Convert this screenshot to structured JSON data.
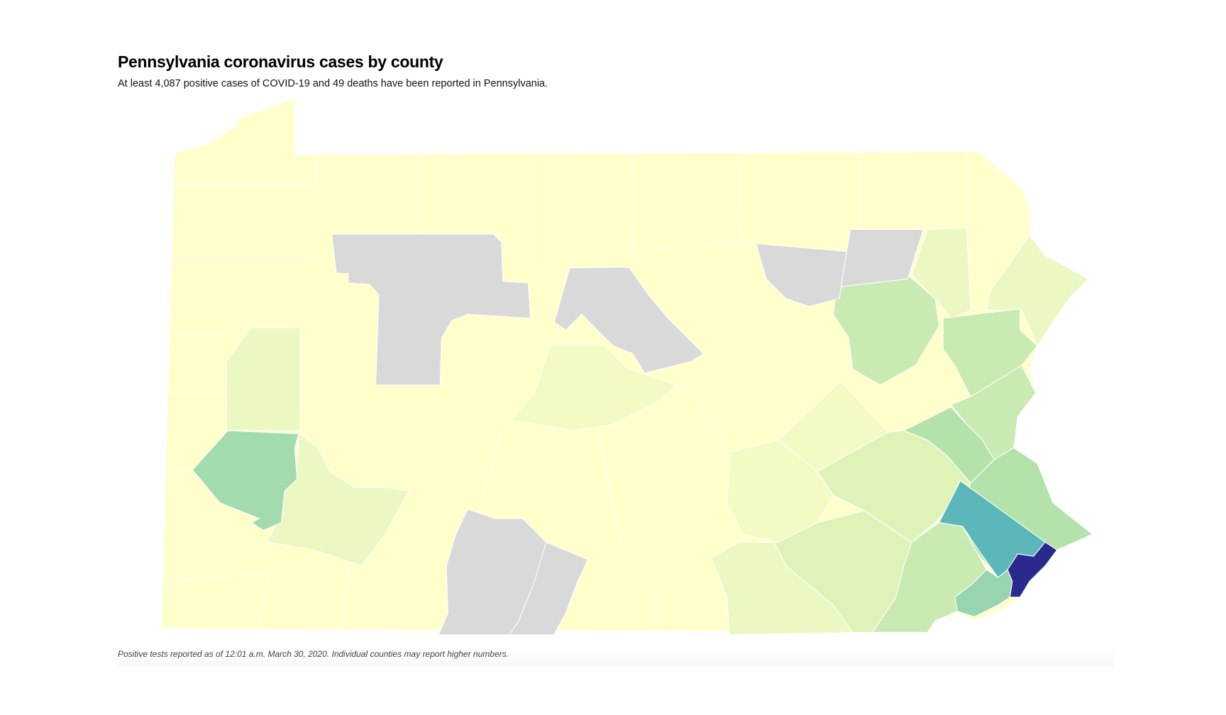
{
  "header": {
    "title": "Pennsylvania coronavirus cases by county",
    "subtitle": "At least 4,087 positive cases of COVID-19 and 49 deaths have been reported in Pennsylvania."
  },
  "footer": {
    "note": "Positive tests reported as of 12:01 a.m. March 30, 2020. Individual counties may report higher numbers."
  },
  "chart_data": {
    "type": "choropleth",
    "region": "Pennsylvania",
    "unit": "county",
    "legend": "none",
    "colors": {
      "no_data": "#d9d9d9",
      "scale": [
        "#ffffcc",
        "#f3fac4",
        "#ebf8c2",
        "#dff3b8",
        "#c9eab0",
        "#b4e2ab",
        "#a1dbae",
        "#99d4b0",
        "#5bb7ba",
        "#2a2a8c"
      ]
    }
  }
}
